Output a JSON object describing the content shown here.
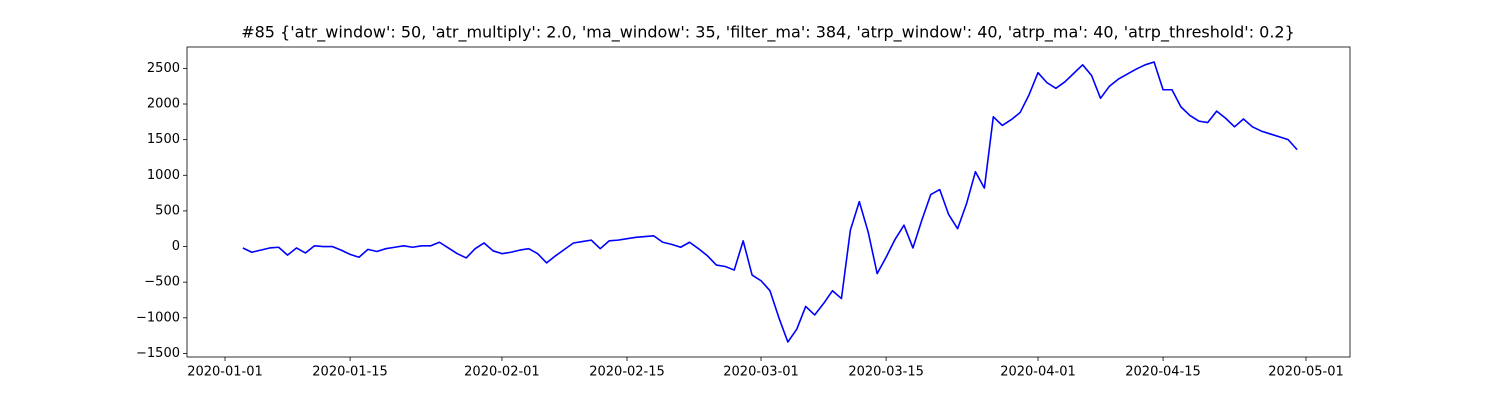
{
  "chart_data": {
    "type": "line",
    "title": "#85 {'atr_window': 50, 'atr_multiply': 2.0, 'ma_window': 35, 'filter_ma': 384, 'atrp_window': 40, 'atrp_ma': 40, 'atrp_threshold': 0.2}",
    "x": [
      "2020-01-03",
      "2020-01-04",
      "2020-01-05",
      "2020-01-06",
      "2020-01-07",
      "2020-01-08",
      "2020-01-09",
      "2020-01-10",
      "2020-01-11",
      "2020-01-12",
      "2020-01-13",
      "2020-01-14",
      "2020-01-15",
      "2020-01-16",
      "2020-01-17",
      "2020-01-18",
      "2020-01-19",
      "2020-01-20",
      "2020-01-21",
      "2020-01-22",
      "2020-01-23",
      "2020-01-24",
      "2020-01-25",
      "2020-01-26",
      "2020-01-27",
      "2020-01-28",
      "2020-01-29",
      "2020-01-30",
      "2020-01-31",
      "2020-02-01",
      "2020-02-02",
      "2020-02-03",
      "2020-02-04",
      "2020-02-05",
      "2020-02-06",
      "2020-02-07",
      "2020-02-08",
      "2020-02-09",
      "2020-02-10",
      "2020-02-11",
      "2020-02-12",
      "2020-02-13",
      "2020-02-14",
      "2020-02-15",
      "2020-02-16",
      "2020-02-17",
      "2020-02-18",
      "2020-02-19",
      "2020-02-20",
      "2020-02-21",
      "2020-02-22",
      "2020-02-23",
      "2020-02-24",
      "2020-02-25",
      "2020-02-26",
      "2020-02-27",
      "2020-02-28",
      "2020-02-29",
      "2020-03-01",
      "2020-03-02",
      "2020-03-03",
      "2020-03-04",
      "2020-03-05",
      "2020-03-06",
      "2020-03-07",
      "2020-03-08",
      "2020-03-09",
      "2020-03-10",
      "2020-03-11",
      "2020-03-12",
      "2020-03-13",
      "2020-03-14",
      "2020-03-15",
      "2020-03-16",
      "2020-03-17",
      "2020-03-18",
      "2020-03-19",
      "2020-03-20",
      "2020-03-21",
      "2020-03-22",
      "2020-03-23",
      "2020-03-24",
      "2020-03-25",
      "2020-03-26",
      "2020-03-27",
      "2020-03-28",
      "2020-03-29",
      "2020-03-30",
      "2020-03-31",
      "2020-04-01",
      "2020-04-02",
      "2020-04-03",
      "2020-04-04",
      "2020-04-05",
      "2020-04-06",
      "2020-04-07",
      "2020-04-08",
      "2020-04-09",
      "2020-04-10",
      "2020-04-11",
      "2020-04-12",
      "2020-04-13",
      "2020-04-14",
      "2020-04-15",
      "2020-04-16",
      "2020-04-17",
      "2020-04-18",
      "2020-04-19",
      "2020-04-20",
      "2020-04-21",
      "2020-04-22",
      "2020-04-23",
      "2020-04-24",
      "2020-04-25",
      "2020-04-26",
      "2020-04-27",
      "2020-04-28",
      "2020-04-29",
      "2020-04-30"
    ],
    "series": [
      {
        "color": "#0000ff",
        "values": [
          -20,
          -80,
          -50,
          -20,
          -10,
          -120,
          -20,
          -90,
          10,
          0,
          0,
          -50,
          -110,
          -150,
          -40,
          -70,
          -30,
          -10,
          10,
          -10,
          10,
          10,
          60,
          -20,
          -100,
          -160,
          -30,
          50,
          -60,
          -100,
          -80,
          -50,
          -30,
          -100,
          -230,
          -130,
          -40,
          50,
          70,
          90,
          -30,
          80,
          90,
          110,
          130,
          140,
          150,
          60,
          30,
          -10,
          60,
          -30,
          -130,
          -260,
          -280,
          -330,
          80,
          -400,
          -480,
          -620,
          -1000,
          -1340,
          -1160,
          -840,
          -960,
          -800,
          -620,
          -730,
          230,
          630,
          200,
          -380,
          -150,
          100,
          300,
          -20,
          370,
          730,
          800,
          450,
          250,
          600,
          1050,
          820,
          1820,
          1700,
          1780,
          1880,
          2130,
          2440,
          2300,
          2220,
          2310,
          2430,
          2550,
          2400,
          2080,
          2250,
          2350,
          2420,
          2490,
          2550,
          2590,
          2200,
          2200,
          1960,
          1840,
          1760,
          1740,
          1900,
          1800,
          1680,
          1790,
          1680,
          1620,
          1580,
          1540,
          1500,
          1360
        ]
      }
    ],
    "xticks": [
      "2020-01-01",
      "2020-01-15",
      "2020-02-01",
      "2020-02-15",
      "2020-03-01",
      "2020-03-15",
      "2020-04-01",
      "2020-04-15",
      "2020-05-01"
    ],
    "ylim": [
      -1550,
      2800
    ],
    "yticks": [
      {
        "value": -1500,
        "label": "−1500"
      },
      {
        "value": -1000,
        "label": "−1000"
      },
      {
        "value": -500,
        "label": "−500"
      },
      0,
      500,
      1000,
      1500,
      2000,
      2500
    ],
    "grid": false
  }
}
